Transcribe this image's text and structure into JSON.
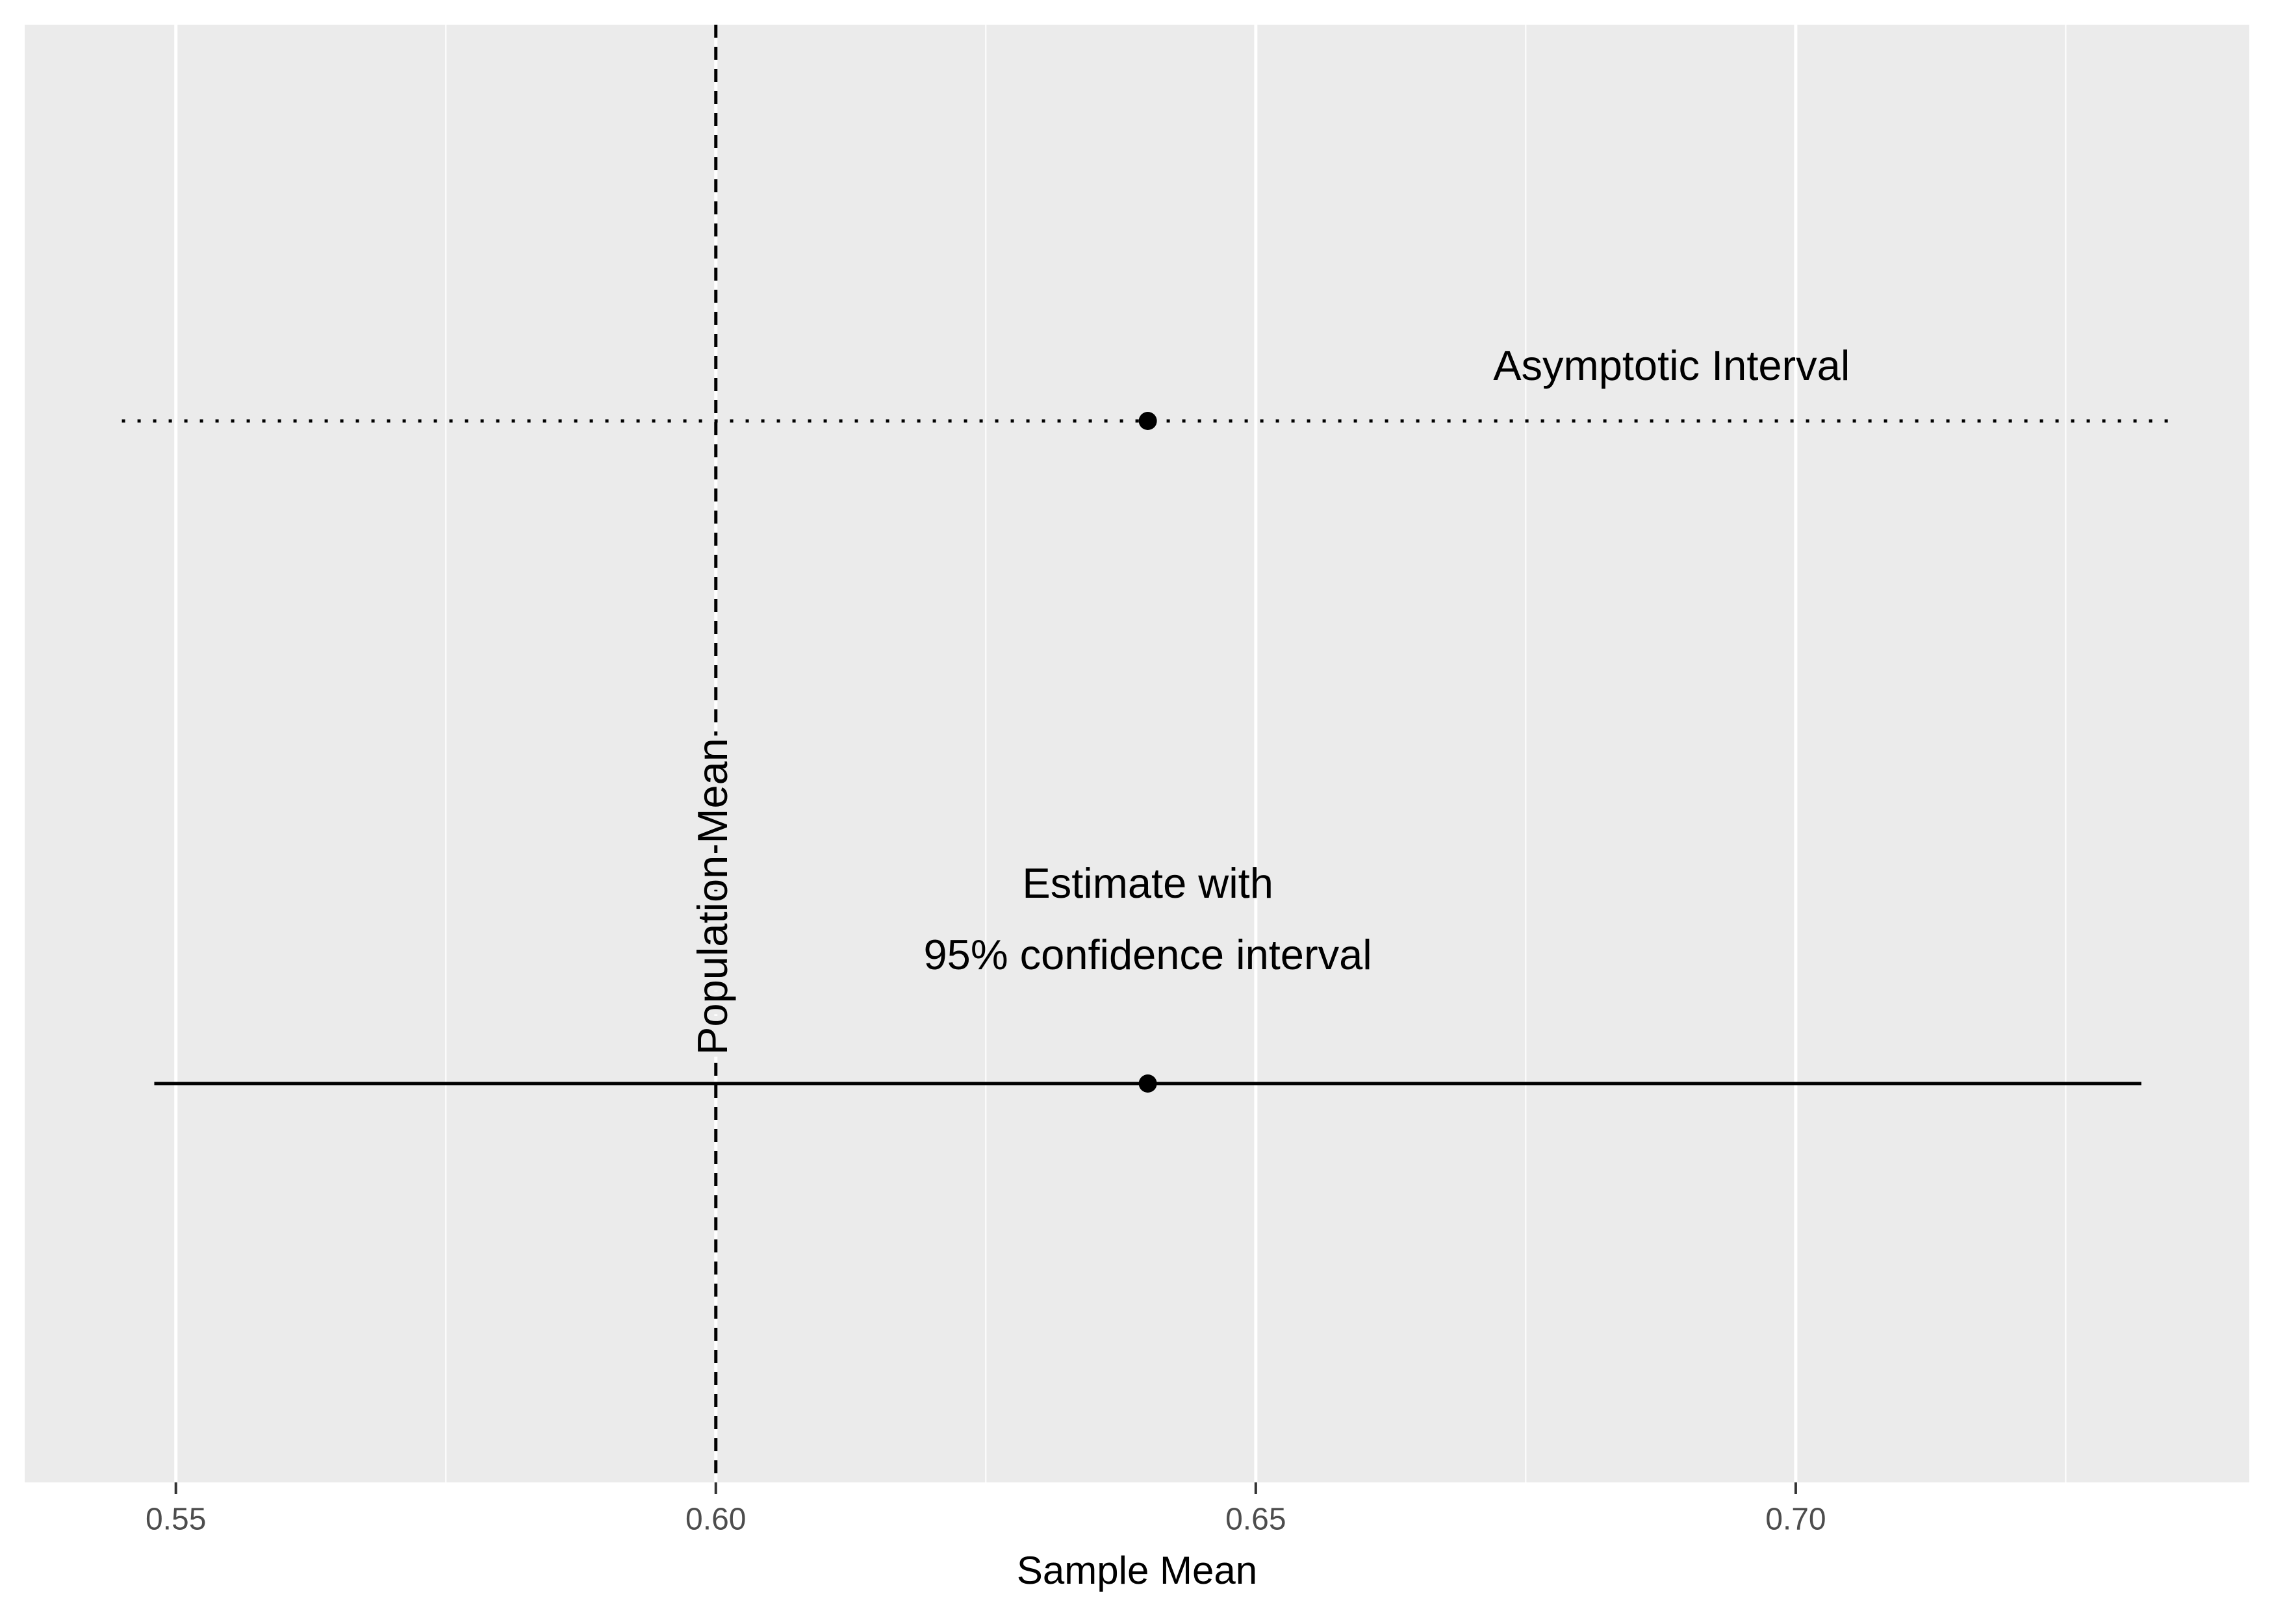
{
  "chart_data": {
    "type": "scatter",
    "title": "",
    "xlabel": "Sample Mean",
    "ylabel": "",
    "xlim": [
      0.536,
      0.742
    ],
    "x_major_ticks": [
      0.55,
      0.6,
      0.65,
      0.7
    ],
    "x_tick_labels": [
      "0.55",
      "0.60",
      "0.65",
      "0.70"
    ],
    "x_minor_ticks": [
      0.575,
      0.625,
      0.675,
      0.725
    ],
    "y_ticks_shown": false,
    "grid": true,
    "background_color": "#EBEBEB",
    "gridline_color": "#FFFFFF",
    "mark_color": "#000000",
    "reference_line": {
      "x": 0.6,
      "style": "dashed",
      "label": "Population Mean"
    },
    "intervals": [
      {
        "estimate": 0.64,
        "lower": 0.548,
        "upper": 0.732,
        "style": "solid",
        "label": "Estimate with\n95% confidence interval",
        "label_lines": [
          "Estimate with",
          "95% confidence interval"
        ]
      },
      {
        "estimate": 0.64,
        "lower": 0.545,
        "upper": 0.735,
        "style": "dotted",
        "label": "Asymptotic Interval",
        "label_lines": [
          "Asymptotic Interval"
        ]
      }
    ]
  }
}
